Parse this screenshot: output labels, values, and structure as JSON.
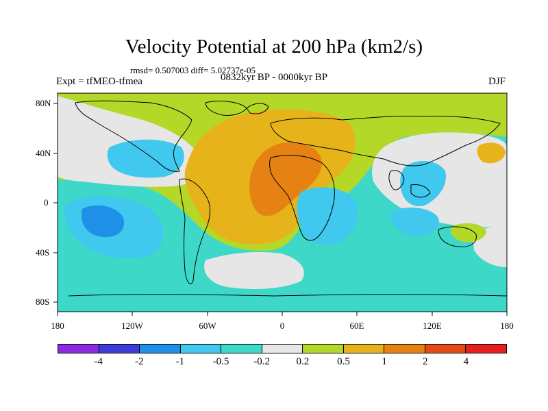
{
  "title": "Velocity Potential at 200 hPa (km2/s)",
  "stats": "rmsd= 0.507003 diff= 5.02737e-05",
  "experiment": "Expt = tfMEO-tfmea",
  "period": "0832kyr BP - 0000kyr BP",
  "season": "DJF",
  "lat_labels": [
    "80N",
    "40N",
    "0",
    "40S",
    "80S"
  ],
  "lon_labels": [
    "180",
    "120W",
    "60W",
    "0",
    "60E",
    "120E",
    "180"
  ],
  "colorbar": {
    "colors": [
      "#8a2be2",
      "#3c3cd8",
      "#1e90e8",
      "#40c8ee",
      "#3ed8c8",
      "#e6e6e6",
      "#b4d828",
      "#e6b41a",
      "#e68214",
      "#e64a14",
      "#e61e1e"
    ],
    "labels": [
      "-4",
      "-2",
      "-1",
      "-0.5",
      "-0.2",
      "0.2",
      "0.5",
      "1",
      "2",
      "4"
    ]
  },
  "palette": {
    "neg_strong": "#1e90e8",
    "neg_mid": "#40c8ee",
    "neg_weak": "#3ed8c8",
    "neutral": "#e6e6e6",
    "pos_weak": "#b4d828",
    "pos_mid": "#e6b41a",
    "pos_strong": "#e68214"
  }
}
